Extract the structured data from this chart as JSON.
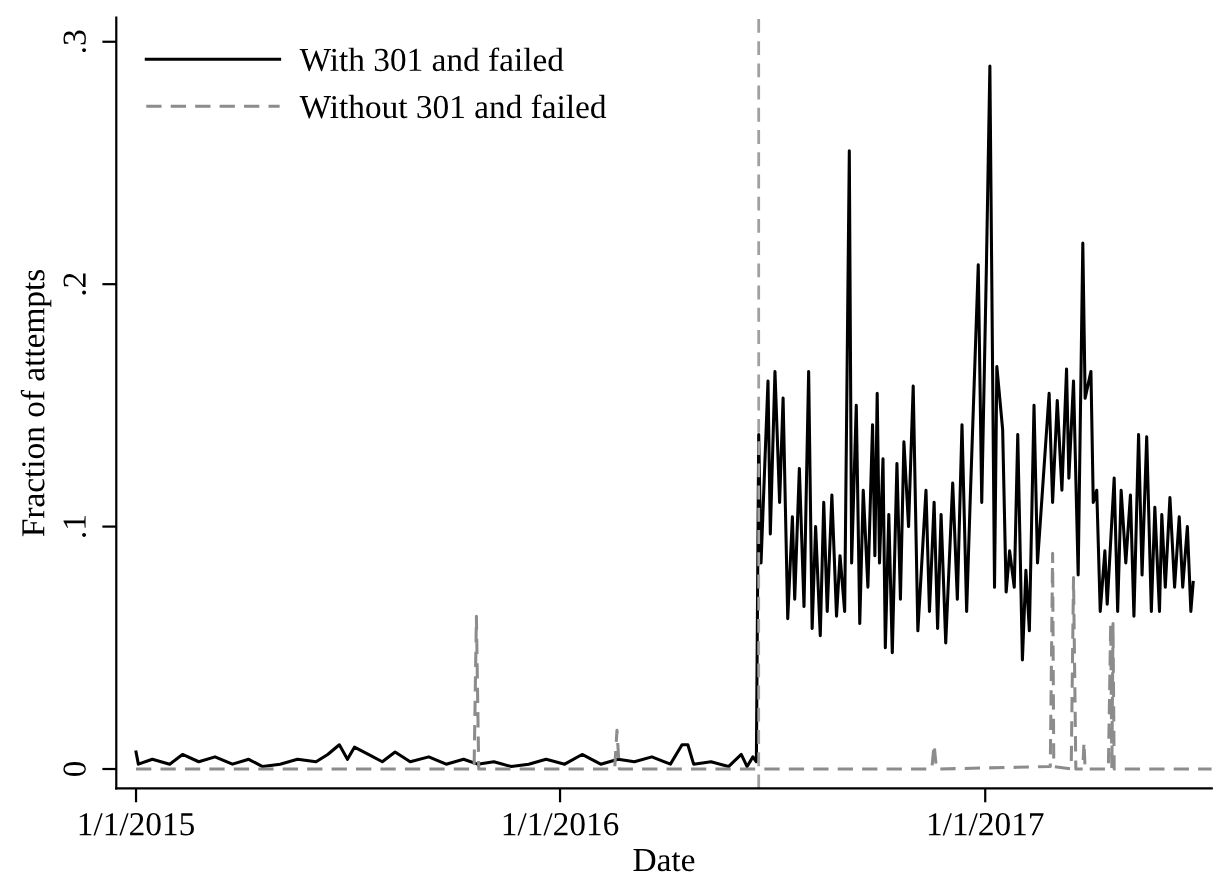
{
  "chart_data": {
    "type": "line",
    "xlabel": "Date",
    "ylabel": "Fraction of attempts",
    "legend": "top left",
    "grid": false,
    "marker": "none",
    "xlim": [
      "2014-12-15",
      "2017-07-15"
    ],
    "ylim": [
      -0.008,
      0.31
    ],
    "xticks": [
      {
        "value": "2015-01-01",
        "label": "1/1/2015"
      },
      {
        "value": "2016-01-01",
        "label": "1/1/2016"
      },
      {
        "value": "2017-01-01",
        "label": "1/1/2017"
      }
    ],
    "yticks": [
      0,
      {
        "value": 0.1,
        "label": ".1"
      },
      {
        "value": 0.2,
        "label": ".2"
      },
      {
        "value": 0.3,
        "label": ".3"
      }
    ],
    "ref_lines": [
      {
        "axis": "x",
        "value": "2016-06-20",
        "color": "#a0a0a0",
        "line_style": "dashed"
      }
    ],
    "series": [
      {
        "name": "With 301 and failed",
        "color": "#000000",
        "line_style": "solid",
        "x": [
          "2015-01-01",
          "2015-01-03",
          "2015-01-15",
          "2015-01-30",
          "2015-02-10",
          "2015-02-24",
          "2015-03-10",
          "2015-03-25",
          "2015-04-08",
          "2015-04-20",
          "2015-05-05",
          "2015-05-20",
          "2015-06-05",
          "2015-06-15",
          "2015-06-25",
          "2015-07-02",
          "2015-07-08",
          "2015-07-20",
          "2015-08-01",
          "2015-08-12",
          "2015-08-25",
          "2015-09-10",
          "2015-09-25",
          "2015-10-10",
          "2015-10-22",
          "2015-11-05",
          "2015-11-20",
          "2015-12-05",
          "2015-12-20",
          "2016-01-05",
          "2016-01-20",
          "2016-02-05",
          "2016-02-20",
          "2016-03-05",
          "2016-03-20",
          "2016-04-05",
          "2016-04-15",
          "2016-04-20",
          "2016-04-25",
          "2016-05-10",
          "2016-05-25",
          "2016-06-05",
          "2016-06-10",
          "2016-06-15",
          "2016-06-18",
          "2016-06-20",
          "2016-06-22",
          "2016-06-28",
          "2016-06-30",
          "2016-07-04",
          "2016-07-08",
          "2016-07-11",
          "2016-07-15",
          "2016-07-19",
          "2016-07-21",
          "2016-07-25",
          "2016-07-29",
          "2016-08-02",
          "2016-08-05",
          "2016-08-08",
          "2016-08-12",
          "2016-08-15",
          "2016-08-18",
          "2016-08-22",
          "2016-08-26",
          "2016-08-29",
          "2016-09-02",
          "2016-09-06",
          "2016-09-08",
          "2016-09-12",
          "2016-09-15",
          "2016-09-18",
          "2016-09-22",
          "2016-09-26",
          "2016-09-28",
          "2016-09-30",
          "2016-10-02",
          "2016-10-05",
          "2016-10-07",
          "2016-10-10",
          "2016-10-13",
          "2016-10-17",
          "2016-10-20",
          "2016-10-23",
          "2016-10-27",
          "2016-10-31",
          "2016-11-04",
          "2016-11-11",
          "2016-11-14",
          "2016-11-18",
          "2016-11-21",
          "2016-11-24",
          "2016-11-28",
          "2016-12-04",
          "2016-12-08",
          "2016-12-12",
          "2016-12-16",
          "2016-12-19",
          "2016-12-26",
          "2016-12-29",
          "2017-01-02",
          "2017-01-05",
          "2017-01-09",
          "2017-01-11",
          "2017-01-16",
          "2017-01-19",
          "2017-01-22",
          "2017-01-26",
          "2017-01-29",
          "2017-02-02",
          "2017-02-05",
          "2017-02-08",
          "2017-02-12",
          "2017-02-15",
          "2017-02-20",
          "2017-02-25",
          "2017-02-28",
          "2017-03-04",
          "2017-03-08",
          "2017-03-12",
          "2017-03-14",
          "2017-03-18",
          "2017-03-22",
          "2017-03-26",
          "2017-03-28",
          "2017-04-02",
          "2017-04-04",
          "2017-04-07",
          "2017-04-10",
          "2017-04-14",
          "2017-04-16",
          "2017-04-22",
          "2017-04-25",
          "2017-04-28",
          "2017-05-02",
          "2017-05-06",
          "2017-05-09",
          "2017-05-13",
          "2017-05-16",
          "2017-05-20",
          "2017-05-24",
          "2017-05-27",
          "2017-05-31",
          "2017-06-02",
          "2017-06-05",
          "2017-06-09",
          "2017-06-13",
          "2017-06-17",
          "2017-06-20",
          "2017-06-24",
          "2017-06-27",
          "2017-06-29"
        ],
        "values": [
          0.007,
          0.002,
          0.004,
          0.002,
          0.006,
          0.003,
          0.005,
          0.002,
          0.004,
          0.001,
          0.002,
          0.004,
          0.003,
          0.006,
          0.01,
          0.004,
          0.009,
          0.006,
          0.003,
          0.007,
          0.003,
          0.005,
          0.002,
          0.004,
          0.002,
          0.003,
          0.001,
          0.002,
          0.004,
          0.002,
          0.006,
          0.002,
          0.004,
          0.003,
          0.005,
          0.002,
          0.01,
          0.01,
          0.002,
          0.003,
          0.001,
          0.006,
          0.001,
          0.005,
          0.003,
          0.138,
          0.085,
          0.16,
          0.097,
          0.164,
          0.11,
          0.153,
          0.062,
          0.104,
          0.07,
          0.124,
          0.067,
          0.164,
          0.058,
          0.1,
          0.055,
          0.11,
          0.065,
          0.113,
          0.063,
          0.088,
          0.065,
          0.255,
          0.085,
          0.15,
          0.06,
          0.115,
          0.075,
          0.142,
          0.088,
          0.155,
          0.085,
          0.128,
          0.05,
          0.105,
          0.048,
          0.126,
          0.07,
          0.135,
          0.1,
          0.158,
          0.057,
          0.115,
          0.065,
          0.11,
          0.058,
          0.105,
          0.052,
          0.118,
          0.07,
          0.142,
          0.065,
          0.11,
          0.208,
          0.11,
          0.207,
          0.29,
          0.075,
          0.166,
          0.14,
          0.073,
          0.09,
          0.075,
          0.138,
          0.045,
          0.082,
          0.057,
          0.15,
          0.085,
          0.12,
          0.155,
          0.11,
          0.152,
          0.115,
          0.165,
          0.12,
          0.16,
          0.08,
          0.217,
          0.153,
          0.164,
          0.11,
          0.115,
          0.065,
          0.09,
          0.068,
          0.12,
          0.065,
          0.115,
          0.085,
          0.113,
          0.063,
          0.138,
          0.08,
          0.137,
          0.065,
          0.108,
          0.065,
          0.105,
          0.075,
          0.112,
          0.075,
          0.104,
          0.075,
          0.1,
          0.065,
          0.077
        ]
      },
      {
        "name": "Without 301 and failed",
        "color": "#8c8c8c",
        "line_style": "dashed",
        "x": [
          "2015-01-01",
          "2015-10-19",
          "2015-10-21",
          "2015-10-23",
          "2016-02-17",
          "2016-02-19",
          "2016-02-21",
          "2016-11-16",
          "2016-11-18",
          "2016-11-20",
          "2017-02-26",
          "2017-02-28",
          "2017-03-01",
          "2017-03-16",
          "2017-03-18",
          "2017-03-20",
          "2017-03-26",
          "2017-03-27",
          "2017-03-28",
          "2017-04-17",
          "2017-04-19",
          "2017-04-20",
          "2017-04-21",
          "2017-04-22",
          "2017-07-15"
        ],
        "values": [
          0,
          0,
          0.063,
          0,
          0,
          0.016,
          0,
          0,
          0.01,
          0,
          0.001,
          0.089,
          0.001,
          0,
          0.079,
          0,
          0,
          0.011,
          0,
          0,
          0.06,
          0,
          0.06,
          0,
          0
        ]
      }
    ]
  }
}
